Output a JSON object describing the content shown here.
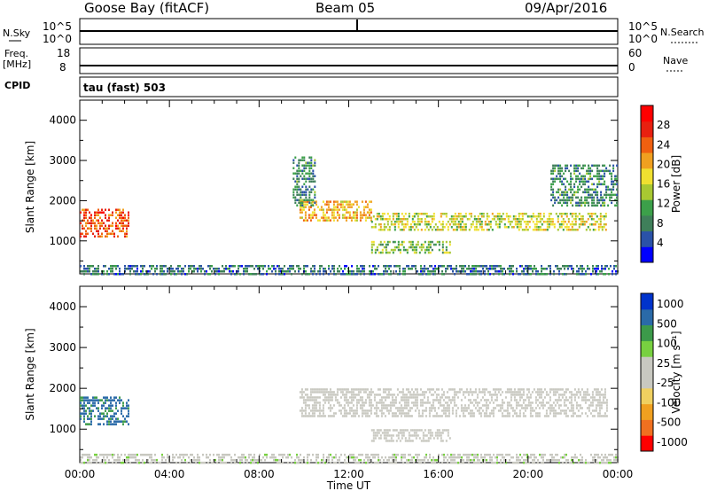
{
  "header": {
    "station": "Goose Bay (fitACF)",
    "beam": "Beam 05",
    "date": "09/Apr/2016"
  },
  "top_panels": {
    "nsky_label": "N.Sky",
    "nsky_ticks": [
      "10^5",
      "10^0"
    ],
    "nsearch_label": "N.Search",
    "nsearch_ticks": [
      "10^5",
      "10^0"
    ],
    "freq_label_line1": "Freq.",
    "freq_label_line2": "[MHz]",
    "freq_ticks": [
      "18",
      "8"
    ],
    "nave_label": "Nave",
    "nave_ticks": [
      "60",
      "0"
    ],
    "cpid_label": "CPID",
    "cpid_text": "tau (fast) 503"
  },
  "colors": {
    "power_scale": [
      "#0000ff",
      "#2a52a8",
      "#3f7f5a",
      "#3ca04a",
      "#a8c832",
      "#f0e030",
      "#f0a020",
      "#f06010",
      "#e82010",
      "#ff0000"
    ],
    "velocity_scale": [
      "#ff0000",
      "#f07020",
      "#f0a020",
      "#f0d060",
      "#c8c8c0",
      "#c8c8c0",
      "#78d040",
      "#3c9a4a",
      "#2a6aa8",
      "#0033cc"
    ],
    "velocity_ground": "#c8c8c0"
  },
  "chart_data": [
    {
      "type": "heatmap",
      "title": "",
      "xlabel": "Time UT",
      "ylabel": "Slant Range [km]",
      "xlim_hours": [
        0,
        24
      ],
      "x_ticks": [
        "00:00",
        "04:00",
        "08:00",
        "12:00",
        "16:00",
        "20:00",
        "00:00"
      ],
      "ylim": [
        180,
        4500
      ],
      "y_ticks": [
        1000,
        2000,
        3000,
        4000
      ],
      "colorbar": {
        "label": "Power [dB]",
        "range": [
          0,
          32
        ],
        "ticks": [
          4,
          8,
          12,
          16,
          20,
          24,
          28
        ]
      },
      "scatter_regions": [
        {
          "time_hours": [
            0.0,
            2.2
          ],
          "range_km": [
            1100,
            1800
          ],
          "value_db": 26
        },
        {
          "time_hours": [
            9.8,
            13.0
          ],
          "range_km": [
            1500,
            2000
          ],
          "value_db": 20
        },
        {
          "time_hours": [
            13.0,
            23.5
          ],
          "range_km": [
            1300,
            1700
          ],
          "value_db": 16
        },
        {
          "time_hours": [
            13.0,
            16.5
          ],
          "range_km": [
            700,
            1000
          ],
          "value_db": 12
        },
        {
          "time_hours": [
            9.5,
            10.5
          ],
          "range_km": [
            1900,
            3100
          ],
          "value_db": 8
        },
        {
          "time_hours": [
            21.0,
            24.0
          ],
          "range_km": [
            1900,
            2900
          ],
          "value_db": 8
        },
        {
          "time_hours": [
            0.0,
            24.0
          ],
          "range_km": [
            180,
            400
          ],
          "value_db": 6
        }
      ]
    },
    {
      "type": "heatmap",
      "title": "",
      "xlabel": "Time UT",
      "ylabel": "Slant Range [km]",
      "xlim_hours": [
        0,
        24
      ],
      "x_ticks": [
        "00:00",
        "04:00",
        "08:00",
        "12:00",
        "16:00",
        "20:00",
        "00:00"
      ],
      "ylim": [
        180,
        4500
      ],
      "y_ticks": [
        1000,
        2000,
        3000,
        4000
      ],
      "colorbar": {
        "label": "Velocity [m s⁻¹]",
        "ticks": [
          1000,
          500,
          100,
          25,
          -25,
          -100,
          -500,
          -1000
        ]
      },
      "scatter_regions": [
        {
          "time_hours": [
            0.0,
            2.2
          ],
          "range_km": [
            1100,
            1800
          ],
          "velocity_ms": 150
        },
        {
          "time_hours": [
            9.8,
            23.5
          ],
          "range_km": [
            1300,
            2000
          ],
          "velocity_ms": 0
        },
        {
          "time_hours": [
            13.0,
            16.5
          ],
          "range_km": [
            700,
            1000
          ],
          "velocity_ms": 0
        },
        {
          "time_hours": [
            0.0,
            24.0
          ],
          "range_km": [
            180,
            400
          ],
          "velocity_ms": -100
        }
      ]
    }
  ]
}
